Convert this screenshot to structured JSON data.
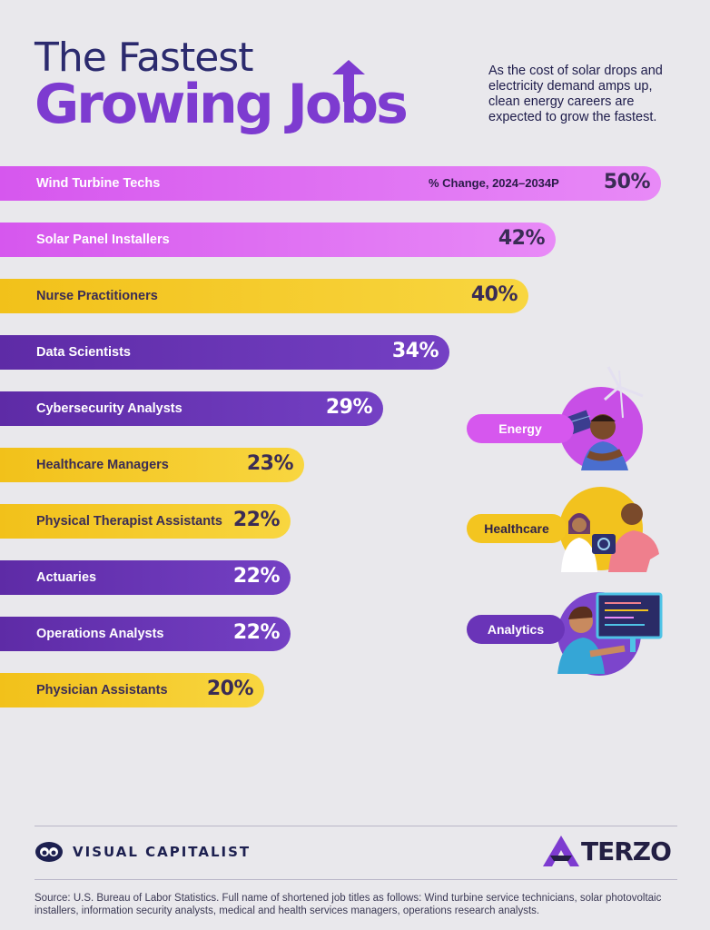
{
  "header": {
    "title_line1": "The Fastest",
    "title_line2": "Growing Jobs",
    "subtitle": "As the cost of solar drops and electricity demand amps up, clean energy careers are expected to grow the fastest."
  },
  "chart_data": {
    "type": "bar",
    "orientation": "horizontal",
    "value_label": "% Change, 2024–2034P",
    "categories": [
      "Wind Turbine Techs",
      "Solar Panel Installers",
      "Nurse Practitioners",
      "Data Scientists",
      "Cybersecurity Analysts",
      "Healthcare Managers",
      "Physical Therapist Assistants",
      "Actuaries",
      "Operations Analysts",
      "Physician Assistants"
    ],
    "values": [
      50,
      42,
      40,
      34,
      29,
      23,
      22,
      22,
      22,
      20
    ],
    "value_labels": [
      "50%",
      "42%",
      "40%",
      "34%",
      "29%",
      "23%",
      "22%",
      "22%",
      "22%",
      "20%"
    ],
    "groups": [
      "Energy",
      "Energy",
      "Healthcare",
      "Analytics",
      "Analytics",
      "Healthcare",
      "Healthcare",
      "Analytics",
      "Analytics",
      "Healthcare"
    ],
    "colors": {
      "Energy": "#d657ee",
      "Healthcare": "#f3c520",
      "Analytics": "#6a34b8"
    }
  },
  "legend": {
    "energy": "Energy",
    "healthcare": "Healthcare",
    "analytics": "Analytics"
  },
  "footer": {
    "brand": "VISUAL CAPITALIST",
    "partner": "TERZO",
    "source": "Source: U.S. Bureau of Labor Statistics. Full name of shortened job titles as follows: Wind turbine service technicians, solar photovoltaic installers, information security analysts, medical and health services managers, operations research analysts."
  }
}
